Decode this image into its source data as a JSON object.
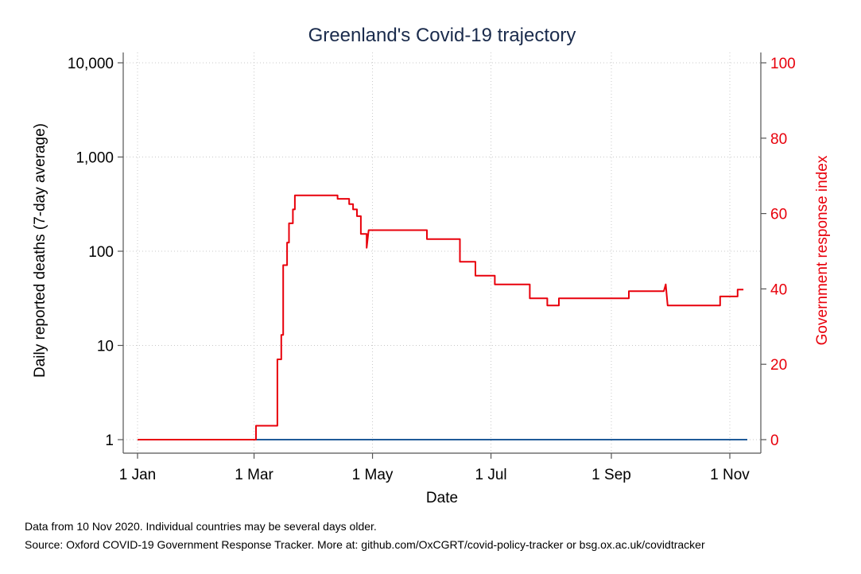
{
  "chart_data": {
    "type": "line",
    "title": "Greenland's Covid-19 trajectory",
    "xlabel": "Date",
    "ylabel_left": "Daily reported deaths (7-day average)",
    "ylabel_right": "Government response index",
    "x_tick_labels": [
      "1 Jan",
      "1 Mar",
      "1 May",
      "1 Jul",
      "1 Sep",
      "1 Nov"
    ],
    "x_tick_dates": [
      "2020-01-01",
      "2020-03-01",
      "2020-05-01",
      "2020-07-01",
      "2020-09-01",
      "2020-11-01"
    ],
    "x_range": [
      "2020-01-01",
      "2020-11-10"
    ],
    "y_left": {
      "scale": "log",
      "ticks": [
        1,
        10,
        100,
        1000,
        10000
      ],
      "tick_labels": [
        "1",
        "10",
        "100",
        "1,000",
        "10,000"
      ],
      "range": [
        1,
        10000
      ]
    },
    "y_right": {
      "scale": "linear",
      "ticks": [
        0,
        20,
        40,
        60,
        80,
        100
      ],
      "tick_labels": [
        "0",
        "20",
        "40",
        "60",
        "80",
        "100"
      ],
      "range": [
        0,
        100
      ]
    },
    "grid": true,
    "series": [
      {
        "axis": "left",
        "color": "#1f5b99",
        "points": [
          [
            "2020-01-01",
            1
          ],
          [
            "2020-11-10",
            1
          ]
        ]
      },
      {
        "axis": "right",
        "color": "#e8000b",
        "points": [
          [
            "2020-01-01",
            0
          ],
          [
            "2020-03-02",
            0
          ],
          [
            "2020-03-02",
            3.7
          ],
          [
            "2020-03-13",
            3.7
          ],
          [
            "2020-03-13",
            21.3
          ],
          [
            "2020-03-15",
            21.3
          ],
          [
            "2020-03-15",
            27.8
          ],
          [
            "2020-03-16",
            27.8
          ],
          [
            "2020-03-16",
            46.3
          ],
          [
            "2020-03-18",
            46.3
          ],
          [
            "2020-03-18",
            52.3
          ],
          [
            "2020-03-19",
            52.3
          ],
          [
            "2020-03-19",
            57.4
          ],
          [
            "2020-03-21",
            57.4
          ],
          [
            "2020-03-21",
            61.1
          ],
          [
            "2020-03-22",
            61.1
          ],
          [
            "2020-03-22",
            64.8
          ],
          [
            "2020-04-13",
            64.8
          ],
          [
            "2020-04-13",
            63.9
          ],
          [
            "2020-04-19",
            63.9
          ],
          [
            "2020-04-19",
            62.5
          ],
          [
            "2020-04-21",
            62.5
          ],
          [
            "2020-04-21",
            61.1
          ],
          [
            "2020-04-23",
            61.1
          ],
          [
            "2020-04-23",
            59.3
          ],
          [
            "2020-04-25",
            59.3
          ],
          [
            "2020-04-25",
            54.6
          ],
          [
            "2020-04-28",
            54.6
          ],
          [
            "2020-04-28",
            50.9
          ],
          [
            "2020-04-29",
            55.6
          ],
          [
            "2020-05-29",
            55.6
          ],
          [
            "2020-05-29",
            53.2
          ],
          [
            "2020-06-15",
            53.2
          ],
          [
            "2020-06-15",
            47.2
          ],
          [
            "2020-06-23",
            47.2
          ],
          [
            "2020-06-23",
            43.5
          ],
          [
            "2020-07-03",
            43.5
          ],
          [
            "2020-07-03",
            41.2
          ],
          [
            "2020-07-21",
            41.2
          ],
          [
            "2020-07-21",
            37.5
          ],
          [
            "2020-07-30",
            37.5
          ],
          [
            "2020-07-30",
            35.6
          ],
          [
            "2020-08-05",
            35.6
          ],
          [
            "2020-08-05",
            37.5
          ],
          [
            "2020-09-10",
            37.5
          ],
          [
            "2020-09-10",
            39.4
          ],
          [
            "2020-09-28",
            39.4
          ],
          [
            "2020-09-29",
            41.2
          ],
          [
            "2020-09-30",
            35.6
          ],
          [
            "2020-10-27",
            35.6
          ],
          [
            "2020-10-27",
            38.0
          ],
          [
            "2020-11-05",
            38.0
          ],
          [
            "2020-11-05",
            39.8
          ],
          [
            "2020-11-08",
            39.8
          ]
        ]
      }
    ]
  },
  "footer": {
    "note1": "Data from 10 Nov 2020. Individual countries may be several days older.",
    "note2": "Source: Oxford COVID-19 Government Response Tracker. More at: github.com/OxCGRT/covid-policy-tracker or bsg.ox.ac.uk/covidtracker"
  }
}
